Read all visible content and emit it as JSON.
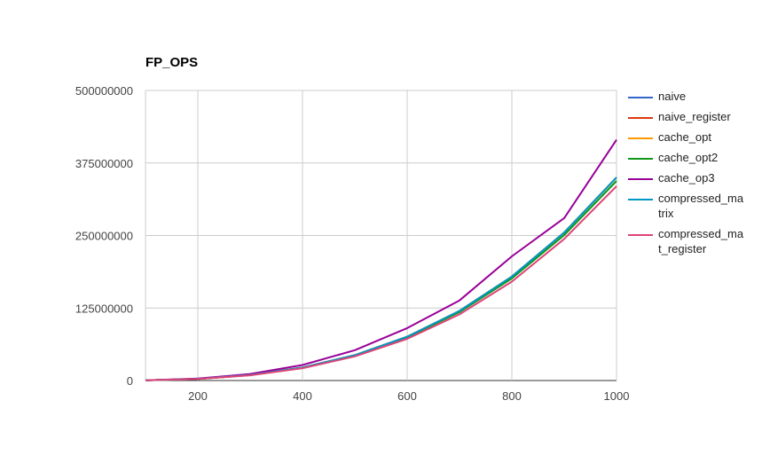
{
  "chart_data": {
    "type": "line",
    "title": "FP_OPS",
    "xlabel": "",
    "ylabel": "",
    "x": [
      100,
      200,
      300,
      400,
      500,
      600,
      700,
      800,
      900,
      1000
    ],
    "xlim": [
      100,
      1000
    ],
    "ylim": [
      0,
      500000000
    ],
    "x_ticks": [
      "200",
      "400",
      "600",
      "800",
      "1000"
    ],
    "x_tick_values": [
      200,
      400,
      600,
      800,
      1000
    ],
    "y_ticks": [
      "0",
      "125000000",
      "250000000",
      "375000000",
      "500000000"
    ],
    "y_tick_values": [
      0,
      125000000,
      250000000,
      375000000,
      500000000
    ],
    "grid": true,
    "legend_position": "right",
    "series": [
      {
        "name": "naive",
        "color": "#3366cc",
        "values": [
          350000,
          2800000,
          9500000,
          22400000,
          43800000,
          75600000,
          120000000,
          179200000,
          255100000,
          350000000
        ]
      },
      {
        "name": "naive_register",
        "color": "#dc3912",
        "values": [
          350000,
          2800000,
          9500000,
          22400000,
          43800000,
          75600000,
          120000000,
          179200000,
          255100000,
          350000000
        ]
      },
      {
        "name": "cache_opt",
        "color": "#ff9900",
        "values": [
          350000,
          2800000,
          9500000,
          22400000,
          43800000,
          75600000,
          120000000,
          179200000,
          255100000,
          350000000
        ]
      },
      {
        "name": "cache_opt2",
        "color": "#109618",
        "values": [
          340000,
          2750000,
          9300000,
          22000000,
          43000000,
          74300000,
          118000000,
          176000000,
          250600000,
          344000000
        ]
      },
      {
        "name": "cache_op3",
        "color": "#990099",
        "values": [
          420000,
          3400000,
          11300000,
          26800000,
          52300000,
          90400000,
          138000000,
          214000000,
          280000000,
          415000000
        ]
      },
      {
        "name": "compressed_matrix",
        "color": "#0099c6",
        "values": [
          350000,
          2800000,
          9500000,
          22400000,
          43800000,
          75600000,
          120000000,
          179200000,
          255100000,
          350000000
        ]
      },
      {
        "name": "compressed_mat_register",
        "color": "#dd4477",
        "values": [
          330000,
          2650000,
          9000000,
          21300000,
          41600000,
          71900000,
          114000000,
          170500000,
          244000000,
          335000000
        ]
      }
    ]
  }
}
